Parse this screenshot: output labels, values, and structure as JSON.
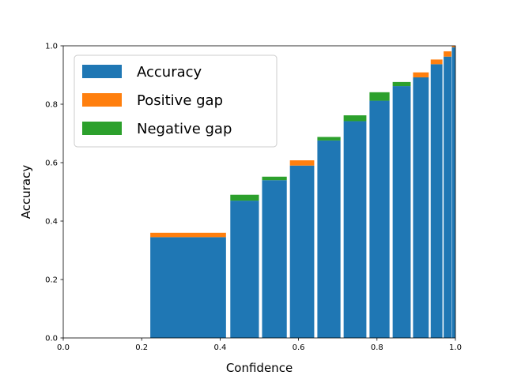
{
  "chart_data": {
    "type": "bar",
    "title": "",
    "xlabel": "Confidence",
    "ylabel": "Accuracy",
    "xlim": [
      0.0,
      1.0
    ],
    "ylim": [
      0.0,
      1.0
    ],
    "xticks": [
      "0.0",
      "0.2",
      "0.4",
      "0.6",
      "0.8",
      "1.0"
    ],
    "yticks": [
      "0.0",
      "0.2",
      "0.4",
      "0.6",
      "0.8",
      "1.0"
    ],
    "grid": false,
    "legend_position": "top-left",
    "legend": [
      {
        "key": "accuracy",
        "label": "Accuracy",
        "color": "#1f77b4"
      },
      {
        "key": "positive",
        "label": "Positive gap",
        "color": "#ff7f0e"
      },
      {
        "key": "negative",
        "label": "Negative gap",
        "color": "#2ca02c"
      }
    ],
    "bins": [
      {
        "x0": 0.222,
        "x1": 0.415,
        "accuracy": 0.345,
        "gap_type": "positive",
        "gap": 0.015
      },
      {
        "x0": 0.426,
        "x1": 0.499,
        "accuracy": 0.47,
        "gap_type": "negative",
        "gap": 0.02
      },
      {
        "x0": 0.507,
        "x1": 0.57,
        "accuracy": 0.54,
        "gap_type": "negative",
        "gap": 0.012
      },
      {
        "x0": 0.578,
        "x1": 0.64,
        "accuracy": 0.59,
        "gap_type": "positive",
        "gap": 0.018
      },
      {
        "x0": 0.648,
        "x1": 0.707,
        "accuracy": 0.676,
        "gap_type": "negative",
        "gap": 0.012
      },
      {
        "x0": 0.715,
        "x1": 0.773,
        "accuracy": 0.742,
        "gap_type": "negative",
        "gap": 0.02
      },
      {
        "x0": 0.781,
        "x1": 0.832,
        "accuracy": 0.812,
        "gap_type": "negative",
        "gap": 0.029
      },
      {
        "x0": 0.84,
        "x1": 0.886,
        "accuracy": 0.862,
        "gap_type": "negative",
        "gap": 0.014
      },
      {
        "x0": 0.892,
        "x1": 0.932,
        "accuracy": 0.892,
        "gap_type": "positive",
        "gap": 0.017
      },
      {
        "x0": 0.937,
        "x1": 0.967,
        "accuracy": 0.937,
        "gap_type": "positive",
        "gap": 0.016
      },
      {
        "x0": 0.97,
        "x1": 0.99,
        "accuracy": 0.963,
        "gap_type": "positive",
        "gap": 0.018
      },
      {
        "x0": 0.991,
        "x1": 1.0,
        "accuracy": 0.995,
        "gap_type": "positive",
        "gap": 0.005
      }
    ]
  }
}
